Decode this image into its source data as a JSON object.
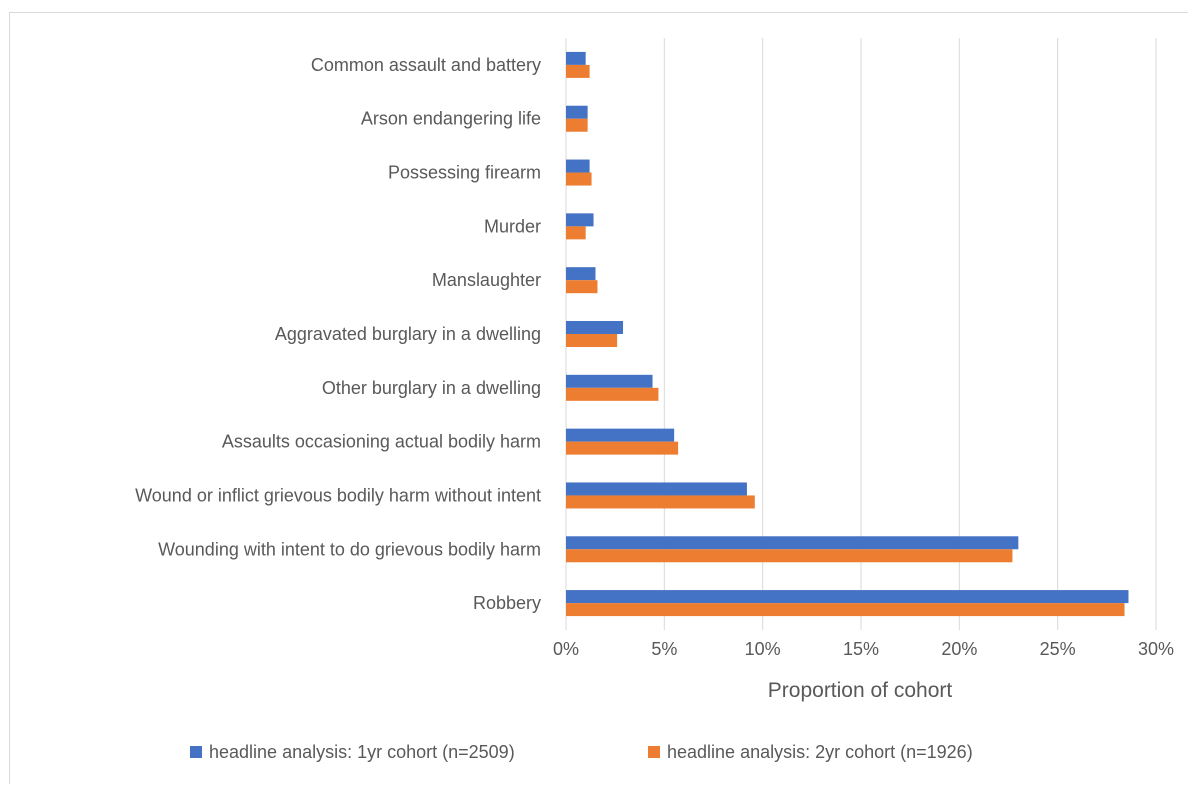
{
  "chart_data": {
    "type": "bar",
    "orientation": "horizontal",
    "categories": [
      "Robbery",
      "Wounding with intent to do grievous bodily harm",
      "Wound or inflict grievous bodily harm without intent",
      "Assaults occasioning actual bodily harm",
      "Other burglary in a dwelling",
      "Aggravated burglary in a dwelling",
      "Manslaughter",
      "Murder",
      "Possessing firearm",
      "Arson endangering life",
      "Common assault and battery"
    ],
    "series": [
      {
        "name": "headline analysis: 1yr cohort (n=2509)",
        "color": "#4472c4",
        "values": [
          28.6,
          23.0,
          9.2,
          5.5,
          4.4,
          2.9,
          1.5,
          1.4,
          1.2,
          1.1,
          1.0
        ]
      },
      {
        "name": "headline analysis: 2yr cohort (n=1926)",
        "color": "#ed7d31",
        "values": [
          28.4,
          22.7,
          9.6,
          5.7,
          4.7,
          2.6,
          1.6,
          1.0,
          1.3,
          1.1,
          1.2
        ]
      }
    ],
    "x_ticks": [
      "0%",
      "5%",
      "10%",
      "15%",
      "20%",
      "25%",
      "30%"
    ],
    "xlim": [
      0,
      30
    ],
    "xlabel": "Proportion of cohort",
    "ylabel": "",
    "grid": "vertical",
    "legend": "bottom"
  }
}
